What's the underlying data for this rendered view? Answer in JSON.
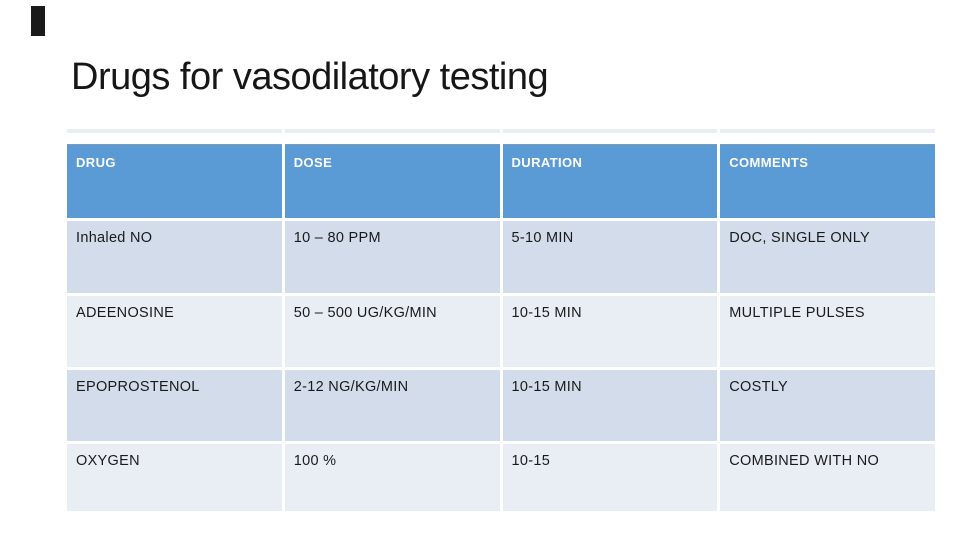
{
  "slide": {
    "title": "Drugs for vasodilatory testing"
  },
  "table": {
    "columns": [
      "DRUG",
      "DOSE",
      "DURATION",
      "COMMENTS"
    ],
    "rows": [
      [
        "Inhaled NO",
        "10 – 80 PPM",
        "5-10 MIN",
        "DOC, SINGLE ONLY"
      ],
      [
        "ADEENOSINE",
        "50 – 500 UG/KG/MIN",
        "10-15 MIN",
        "MULTIPLE PULSES"
      ],
      [
        "EPOPROSTENOL",
        "2-12 NG/KG/MIN",
        "10-15 MIN",
        "COSTLY"
      ],
      [
        "OXYGEN",
        "100 %",
        "10-15",
        "COMBINED WITH NO"
      ]
    ]
  },
  "colors": {
    "header_bg": "#5B9BD5",
    "header_text": "#FFFFFF",
    "row_band_dark": "#D2DCEB",
    "row_band_light": "#E9EEF5",
    "body_text": "#1A1A1A",
    "accent_bar": "#1A1A1A",
    "top_rule": "#E9EEF4"
  }
}
